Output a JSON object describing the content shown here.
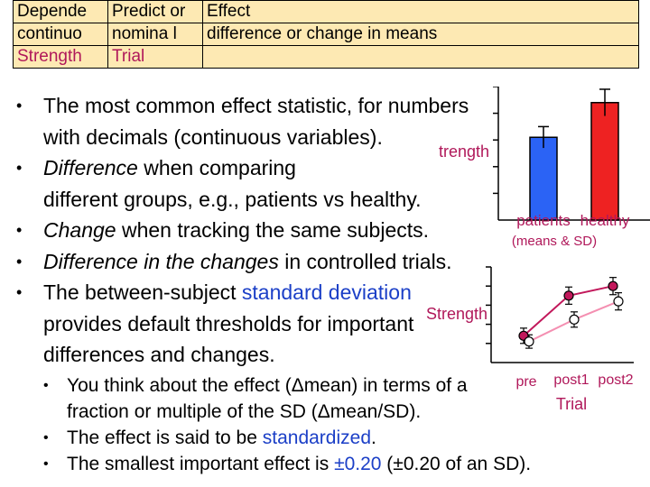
{
  "table": {
    "headers": [
      "Depende nt",
      "Predict or",
      "Effect"
    ],
    "row1": [
      "continuo us",
      "nomina l",
      "difference or change in means"
    ],
    "row2": [
      "Strength",
      "Trial",
      ""
    ]
  },
  "bullets": [
    {
      "parts": [
        "The most common effect statistic, for numbers",
        "with decimals (continuous variables)."
      ]
    },
    {
      "italic": "Difference",
      "rest": " when comparing",
      "line2": "different groups, e.g., patients vs healthy."
    },
    {
      "italic": "Change",
      "rest": " when tracking the same subjects."
    },
    {
      "italic": "Difference in the changes",
      "rest": " in controlled trials."
    },
    {
      "pre": "The between-subject ",
      "blue": "standard deviation",
      "line2": "provides default thresholds for important",
      "line3": "differences and changes."
    }
  ],
  "sub_bullets": [
    {
      "line1": "You think about the effect (Δmean) in terms of a",
      "line2": "fraction or multiple of the SD (Δmean/SD)."
    },
    {
      "pre": "The effect is said to be ",
      "blue": "standardized",
      "post": "."
    },
    {
      "pre": "The smallest important effect is ",
      "blue": "±0.20",
      "post": " (±0.20 of an SD)."
    }
  ],
  "chart1": {
    "ylabel": "Strength",
    "categories": [
      "patients",
      "healthy"
    ],
    "caption": "(means & SD)"
  },
  "chart2": {
    "ylabel": "Strength",
    "xlabel": "Trial",
    "categories": [
      "pre",
      "post1",
      "post2"
    ]
  },
  "chart_data": [
    {
      "type": "bar",
      "categories": [
        "patients",
        "healthy"
      ],
      "values": [
        62,
        88
      ],
      "errors": [
        8,
        10
      ],
      "ylim": [
        0,
        100
      ],
      "ylabel": "Strength",
      "annotation": "(means & SD)",
      "colors": [
        "#2b63f5",
        "#ee2222"
      ]
    },
    {
      "type": "line",
      "categories": [
        "pre",
        "post1",
        "post2"
      ],
      "xlabel": "Trial",
      "ylabel": "Strength",
      "ylim": [
        0,
        100
      ],
      "series": [
        {
          "values": [
            28,
            70,
            80
          ],
          "errors": [
            8,
            9,
            9
          ],
          "color": "#c2185b"
        },
        {
          "values": [
            22,
            45,
            64
          ],
          "errors": [
            7,
            8,
            9
          ],
          "color": "#f48fb1"
        }
      ]
    }
  ]
}
